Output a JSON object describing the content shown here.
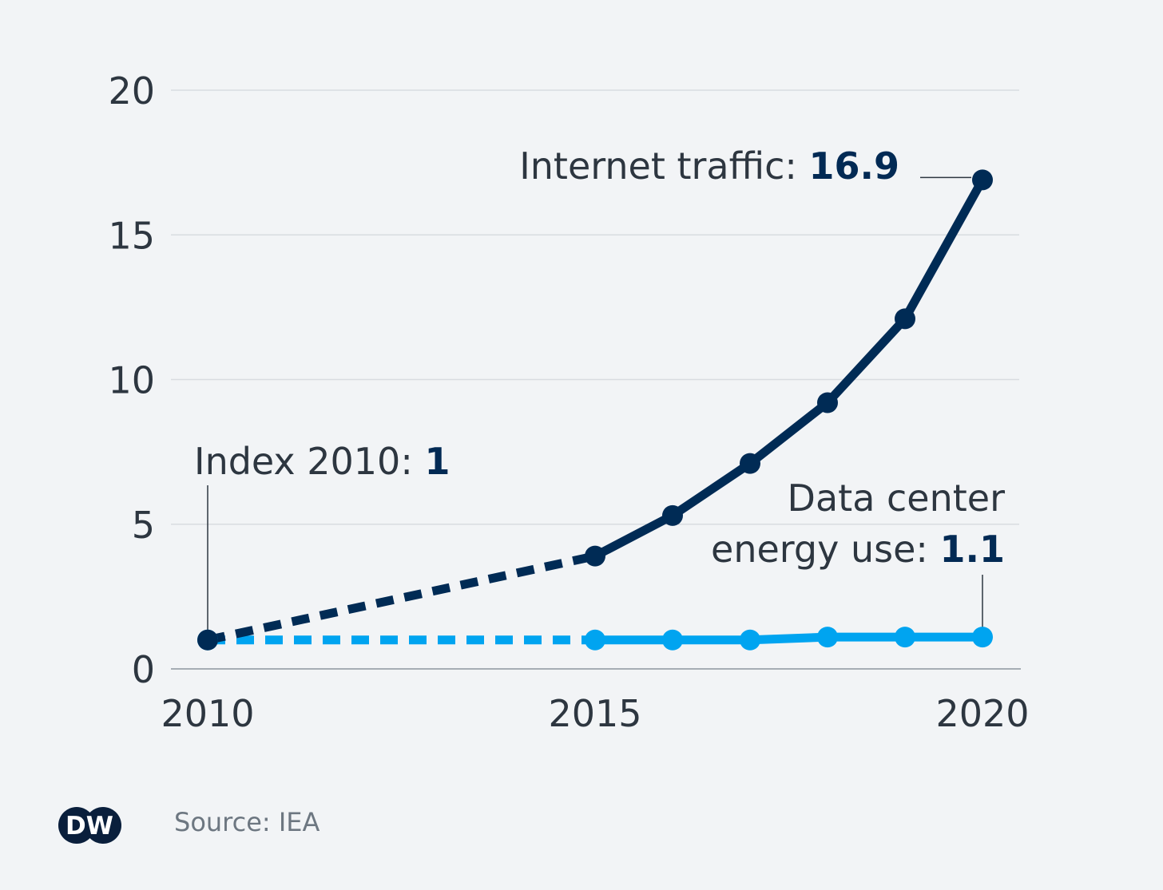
{
  "chart_data": {
    "type": "line",
    "title": "",
    "xlabel": "",
    "ylabel": "",
    "x": [
      2010,
      2015,
      2016,
      2017,
      2018,
      2019,
      2020
    ],
    "x_ticks": [
      "2010",
      "2015",
      "2020"
    ],
    "y_ticks": [
      "0",
      "5",
      "10",
      "15",
      "20"
    ],
    "xlim": [
      2010,
      2020
    ],
    "ylim": [
      0,
      20
    ],
    "grid": true,
    "dashed_segment": [
      2010,
      2015
    ],
    "series": [
      {
        "key": "internet",
        "values": [
          1,
          3.9,
          5.3,
          7.1,
          9.2,
          12.1,
          16.9
        ],
        "color": "#002b55"
      },
      {
        "key": "datacenter",
        "values": [
          1,
          1.0,
          1.0,
          1.0,
          1.1,
          1.1,
          1.1
        ],
        "color": "#00a4f0"
      }
    ],
    "annotations": {
      "index": {
        "label": "Index 2010: ",
        "value": "1"
      },
      "internet": {
        "label": "Internet traffic: ",
        "value": "16.9"
      },
      "datacenter": {
        "line1": "Data center",
        "label": "energy use: ",
        "value": "1.1"
      }
    }
  },
  "footer": {
    "logo": "DW",
    "source": "Source: IEA"
  }
}
